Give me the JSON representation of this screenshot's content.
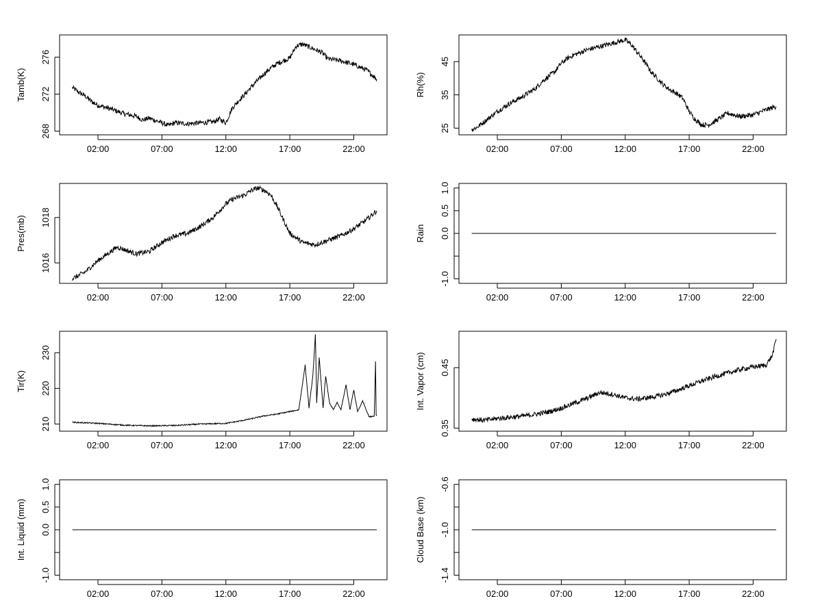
{
  "chart_data": [
    {
      "type": "line",
      "ylabel": "Tamb(K)",
      "x_tick_labels": [
        "02:00",
        "07:00",
        "12:00",
        "17:00",
        "22:00"
      ],
      "x_ticks_hours": [
        2,
        7,
        12,
        17,
        22
      ],
      "xlim_hours": [
        -1,
        24.6
      ],
      "y_ticks": [
        268,
        272,
        276
      ],
      "y_tick_labels": [
        "268",
        "272",
        "276"
      ],
      "ylim": [
        267.6,
        278.4
      ],
      "series": [
        {
          "x_hours": [
            0,
            0.5,
            1,
            1.5,
            2,
            3,
            4,
            5,
            5.5,
            6,
            7,
            7.5,
            8,
            9,
            10,
            11,
            11.5,
            12,
            12.5,
            13,
            13.5,
            14,
            14.5,
            15,
            15.5,
            16,
            16.5,
            17,
            17.5,
            18,
            18.5,
            19,
            19.5,
            20,
            21,
            22,
            23,
            23.5,
            23.8
          ],
          "values": [
            272.7,
            272.2,
            271.8,
            271.2,
            270.8,
            270.4,
            269.9,
            269.6,
            269.2,
            269.4,
            268.9,
            268.6,
            268.9,
            268.8,
            268.9,
            269.0,
            269.3,
            268.9,
            270.5,
            271.3,
            272.0,
            272.8,
            273.5,
            274.2,
            274.8,
            275.3,
            275.6,
            275.9,
            277.2,
            277.4,
            277.1,
            276.8,
            276.5,
            275.8,
            275.6,
            275.2,
            274.6,
            274.0,
            273.6
          ]
        }
      ]
    },
    {
      "type": "line",
      "ylabel": "Rh(%)",
      "x_tick_labels": [
        "02:00",
        "07:00",
        "12:00",
        "17:00",
        "22:00"
      ],
      "x_ticks_hours": [
        2,
        7,
        12,
        17,
        22
      ],
      "xlim_hours": [
        -1,
        24.6
      ],
      "y_ticks": [
        25,
        35,
        45
      ],
      "y_tick_labels": [
        "25",
        "35",
        "45"
      ],
      "ylim": [
        23,
        53
      ],
      "series": [
        {
          "x_hours": [
            0,
            0.5,
            1,
            1.5,
            2,
            3,
            4,
            5,
            5.5,
            6,
            6.5,
            7,
            7.5,
            8,
            9,
            10,
            10.5,
            11,
            11.5,
            12,
            12.5,
            13,
            13.5,
            14,
            14.5,
            15,
            15.5,
            16,
            16.5,
            17,
            17.5,
            18,
            18.5,
            19,
            20,
            21,
            22,
            23,
            23.8
          ],
          "values": [
            24.5,
            25.5,
            27.0,
            28.5,
            30.0,
            32.5,
            34.5,
            37.0,
            39.0,
            40.5,
            42.0,
            44.5,
            46.0,
            47.0,
            48.5,
            49.5,
            50.0,
            50.5,
            51.0,
            51.5,
            50.0,
            47.5,
            45.0,
            42.0,
            40.0,
            38.0,
            36.5,
            35.5,
            34.0,
            30.0,
            27.5,
            26.0,
            26.0,
            27.0,
            29.5,
            28.5,
            29.0,
            30.5,
            31.5
          ]
        }
      ]
    },
    {
      "type": "line",
      "ylabel": "Pres(mb)",
      "x_tick_labels": [
        "02:00",
        "07:00",
        "12:00",
        "17:00",
        "22:00"
      ],
      "x_ticks_hours": [
        2,
        7,
        12,
        17,
        22
      ],
      "xlim_hours": [
        -1,
        24.6
      ],
      "y_ticks": [
        1016,
        1018
      ],
      "y_tick_labels": [
        "1016",
        "1018"
      ],
      "ylim": [
        1015.1,
        1019.5
      ],
      "series": [
        {
          "x_hours": [
            0,
            1,
            2,
            3,
            3.5,
            4,
            5,
            6,
            7,
            8,
            9,
            10,
            11,
            12,
            12.5,
            13,
            13.5,
            14,
            14.5,
            15,
            15.5,
            16,
            16.5,
            17,
            18,
            19,
            20,
            21,
            22,
            23,
            23.8
          ],
          "values": [
            1015.3,
            1015.6,
            1016.1,
            1016.5,
            1016.7,
            1016.6,
            1016.4,
            1016.5,
            1016.9,
            1017.2,
            1017.3,
            1017.6,
            1018.0,
            1018.6,
            1018.8,
            1018.9,
            1019.0,
            1019.2,
            1019.3,
            1019.2,
            1019.0,
            1018.5,
            1017.9,
            1017.3,
            1016.9,
            1016.8,
            1017.0,
            1017.2,
            1017.5,
            1017.9,
            1018.3
          ]
        }
      ]
    },
    {
      "type": "line",
      "ylabel": "Rain",
      "x_tick_labels": [
        "02:00",
        "07:00",
        "12:00",
        "17:00",
        "22:00"
      ],
      "x_ticks_hours": [
        2,
        7,
        12,
        17,
        22
      ],
      "xlim_hours": [
        -1,
        24.6
      ],
      "y_ticks": [
        -1.0,
        -0.5,
        0.0,
        0.5,
        1.0
      ],
      "y_tick_labels": [
        "-1.0",
        "",
        "0.0",
        "0.5",
        "1.0"
      ],
      "ylim": [
        -1.1,
        1.1
      ],
      "series": [
        {
          "x_hours": [
            0,
            23.8
          ],
          "values": [
            0,
            0
          ]
        }
      ]
    },
    {
      "type": "line",
      "ylabel": "Tir(K)",
      "x_tick_labels": [
        "02:00",
        "07:00",
        "12:00",
        "17:00",
        "22:00"
      ],
      "x_ticks_hours": [
        2,
        7,
        12,
        17,
        22
      ],
      "xlim_hours": [
        -1,
        24.6
      ],
      "y_ticks": [
        210,
        220,
        230
      ],
      "y_tick_labels": [
        "210",
        "220",
        "230"
      ],
      "ylim": [
        208,
        236
      ],
      "series": [
        {
          "x_hours": [
            0,
            2,
            4,
            6,
            8,
            10,
            12,
            13,
            14,
            15,
            16,
            17,
            17.7,
            18.2,
            18.5,
            18.8,
            19.0,
            19.1,
            19.3,
            19.6,
            19.8,
            20.1,
            20.4,
            20.7,
            21.0,
            21.4,
            21.7,
            22.0,
            22.3,
            22.7,
            23.2,
            23.6,
            23.7,
            23.75,
            23.8
          ],
          "values": [
            210.5,
            210.2,
            209.7,
            209.5,
            209.6,
            210.0,
            210.2,
            210.8,
            211.5,
            212.3,
            212.8,
            213.5,
            214.0,
            226.5,
            214.5,
            223.5,
            235.0,
            216.0,
            228.5,
            214.5,
            223.5,
            216.0,
            214.0,
            216.0,
            214.0,
            221.0,
            214.0,
            219.5,
            213.5,
            216.5,
            212.0,
            212.3,
            227.5,
            212.5,
            212.5
          ]
        }
      ]
    },
    {
      "type": "line",
      "ylabel": "Int. Vapor (cm)",
      "x_tick_labels": [
        "02:00",
        "07:00",
        "12:00",
        "17:00",
        "22:00"
      ],
      "x_ticks_hours": [
        2,
        7,
        12,
        17,
        22
      ],
      "xlim_hours": [
        -1,
        24.6
      ],
      "y_ticks": [
        0.35,
        0.45
      ],
      "y_tick_labels": [
        "0.35",
        "0.45"
      ],
      "ylim": [
        0.345,
        0.51
      ],
      "series": [
        {
          "x_hours": [
            0,
            1,
            2,
            3,
            4,
            5,
            6,
            7,
            8,
            9,
            10,
            11,
            12,
            13,
            14,
            15,
            16,
            17,
            18,
            19,
            20,
            21,
            22,
            23,
            23.5,
            23.8
          ],
          "values": [
            0.365,
            0.363,
            0.366,
            0.368,
            0.37,
            0.373,
            0.377,
            0.383,
            0.391,
            0.399,
            0.409,
            0.406,
            0.4,
            0.398,
            0.401,
            0.405,
            0.412,
            0.42,
            0.428,
            0.435,
            0.441,
            0.447,
            0.451,
            0.454,
            0.47,
            0.497
          ]
        }
      ]
    },
    {
      "type": "line",
      "ylabel": "Int. Liquid (mm)",
      "x_tick_labels": [
        "02:00",
        "07:00",
        "12:00",
        "17:00",
        "22:00"
      ],
      "x_ticks_hours": [
        2,
        7,
        12,
        17,
        22
      ],
      "xlim_hours": [
        -1,
        24.6
      ],
      "y_ticks": [
        -1.0,
        -0.5,
        0.0,
        0.5,
        1.0
      ],
      "y_tick_labels": [
        "-1.0",
        "",
        "0.0",
        "0.5",
        "1.0"
      ],
      "ylim": [
        -1.1,
        1.1
      ],
      "series": [
        {
          "x_hours": [
            0,
            23.8
          ],
          "values": [
            0,
            0
          ]
        }
      ]
    },
    {
      "type": "line",
      "ylabel": "Cloud Base (km)",
      "x_tick_labels": [
        "02:00",
        "07:00",
        "12:00",
        "17:00",
        "22:00"
      ],
      "x_ticks_hours": [
        2,
        7,
        12,
        17,
        22
      ],
      "xlim_hours": [
        -1,
        24.6
      ],
      "y_ticks": [
        -1.4,
        -1.2,
        -1.0,
        -0.8,
        -0.6
      ],
      "y_tick_labels": [
        "-1.4",
        "",
        "-1.0",
        "",
        "-0.6"
      ],
      "ylim": [
        -1.44,
        -0.56
      ],
      "series": [
        {
          "x_hours": [
            0,
            23.8
          ],
          "values": [
            -1.0,
            -1.0
          ]
        }
      ]
    }
  ]
}
